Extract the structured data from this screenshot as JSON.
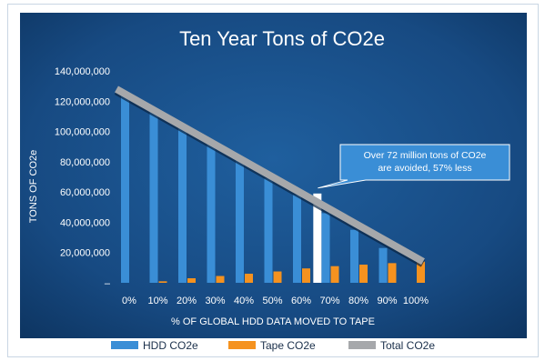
{
  "chart_data": {
    "type": "bar",
    "title": "Ten Year Tons of CO2e",
    "xlabel": "% OF GLOBAL HDD DATA MOVED TO TAPE",
    "ylabel": "TONS OF CO2e",
    "ylim": [
      0,
      140000000
    ],
    "yticks": [
      {
        "value": 0,
        "label": "–"
      },
      {
        "value": 20000000,
        "label": "20,000,000"
      },
      {
        "value": 40000000,
        "label": "40,000,000"
      },
      {
        "value": 60000000,
        "label": "60,000,000"
      },
      {
        "value": 80000000,
        "label": "80,000,000"
      },
      {
        "value": 100000000,
        "label": "100,000,000"
      },
      {
        "value": 120000000,
        "label": "120,000,000"
      },
      {
        "value": 140000000,
        "label": "140,000,000"
      }
    ],
    "categories": [
      "0%",
      "10%",
      "20%",
      "30%",
      "40%",
      "50%",
      "60%",
      "70%",
      "80%",
      "90%",
      "100%"
    ],
    "series": [
      {
        "name": "HDD CO2e",
        "color": "#3a8ed6",
        "values": [
          125000000,
          115000000,
          104000000,
          93000000,
          81000000,
          69000000,
          58000000,
          46000000,
          35000000,
          23000000,
          0
        ]
      },
      {
        "name": "Tape CO2e",
        "color": "#f5921f",
        "values": [
          0,
          1000000,
          3000000,
          4500000,
          6000000,
          7500000,
          9500000,
          11000000,
          12000000,
          13000000,
          14000000
        ]
      },
      {
        "name": "Total CO2e",
        "color": "#a6a8ab",
        "type": "line",
        "values": [
          128000000,
          116000000,
          105000000,
          95000000,
          84000000,
          74000000,
          63000000,
          52000000,
          41000000,
          31000000,
          14000000
        ]
      }
    ],
    "highlight": {
      "value": 59000000,
      "color": "#ffffff"
    },
    "annotation": {
      "lines": [
        "Over 72 million tons of CO2e",
        "are avoided, 57% less"
      ],
      "background": "#3a8ed6"
    },
    "legend_position": "bottom",
    "grid": false
  }
}
